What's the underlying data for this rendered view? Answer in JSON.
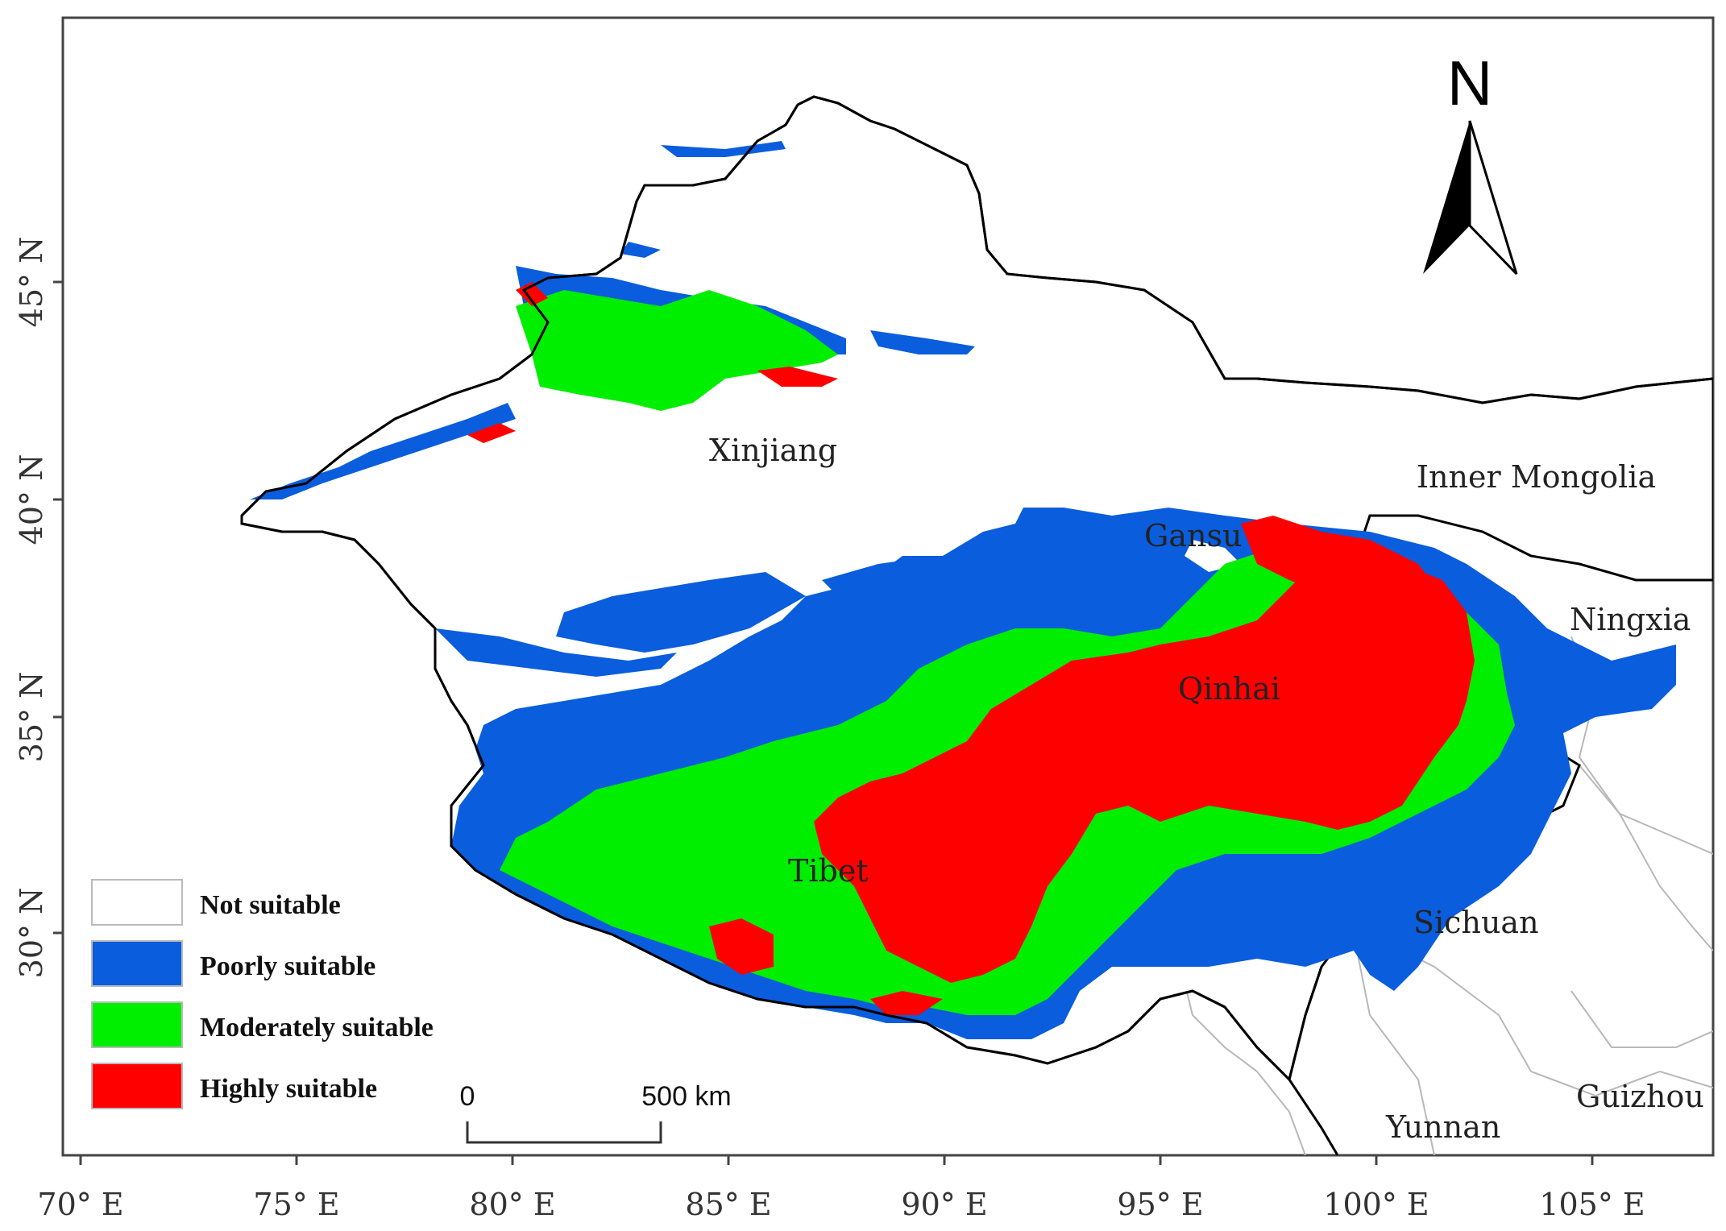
{
  "map": {
    "longitude_ticks": [
      "70° E",
      "75° E",
      "80° E",
      "85° E",
      "90° E",
      "95° E",
      "100° E",
      "105° E"
    ],
    "latitude_ticks": [
      "45° N",
      "40° N",
      "35° N",
      "30° N"
    ],
    "regions": [
      "Xinjiang",
      "Inner Mongolia",
      "Gansu",
      "Ningxia",
      "Qinhai",
      "Tibet",
      "Sichuan",
      "Yunnan",
      "Guizhou"
    ],
    "north_arrow": "N",
    "scale_bar": {
      "start": "0",
      "end": "500 km"
    },
    "legend": [
      {
        "label": "Not suitable",
        "color": "#ffffff"
      },
      {
        "label": "Poorly suitable",
        "color": "#0a5ddc"
      },
      {
        "label": "Moderately suitable",
        "color": "#00ee00"
      },
      {
        "label": "Highly suitable",
        "color": "#ff0000"
      }
    ]
  }
}
